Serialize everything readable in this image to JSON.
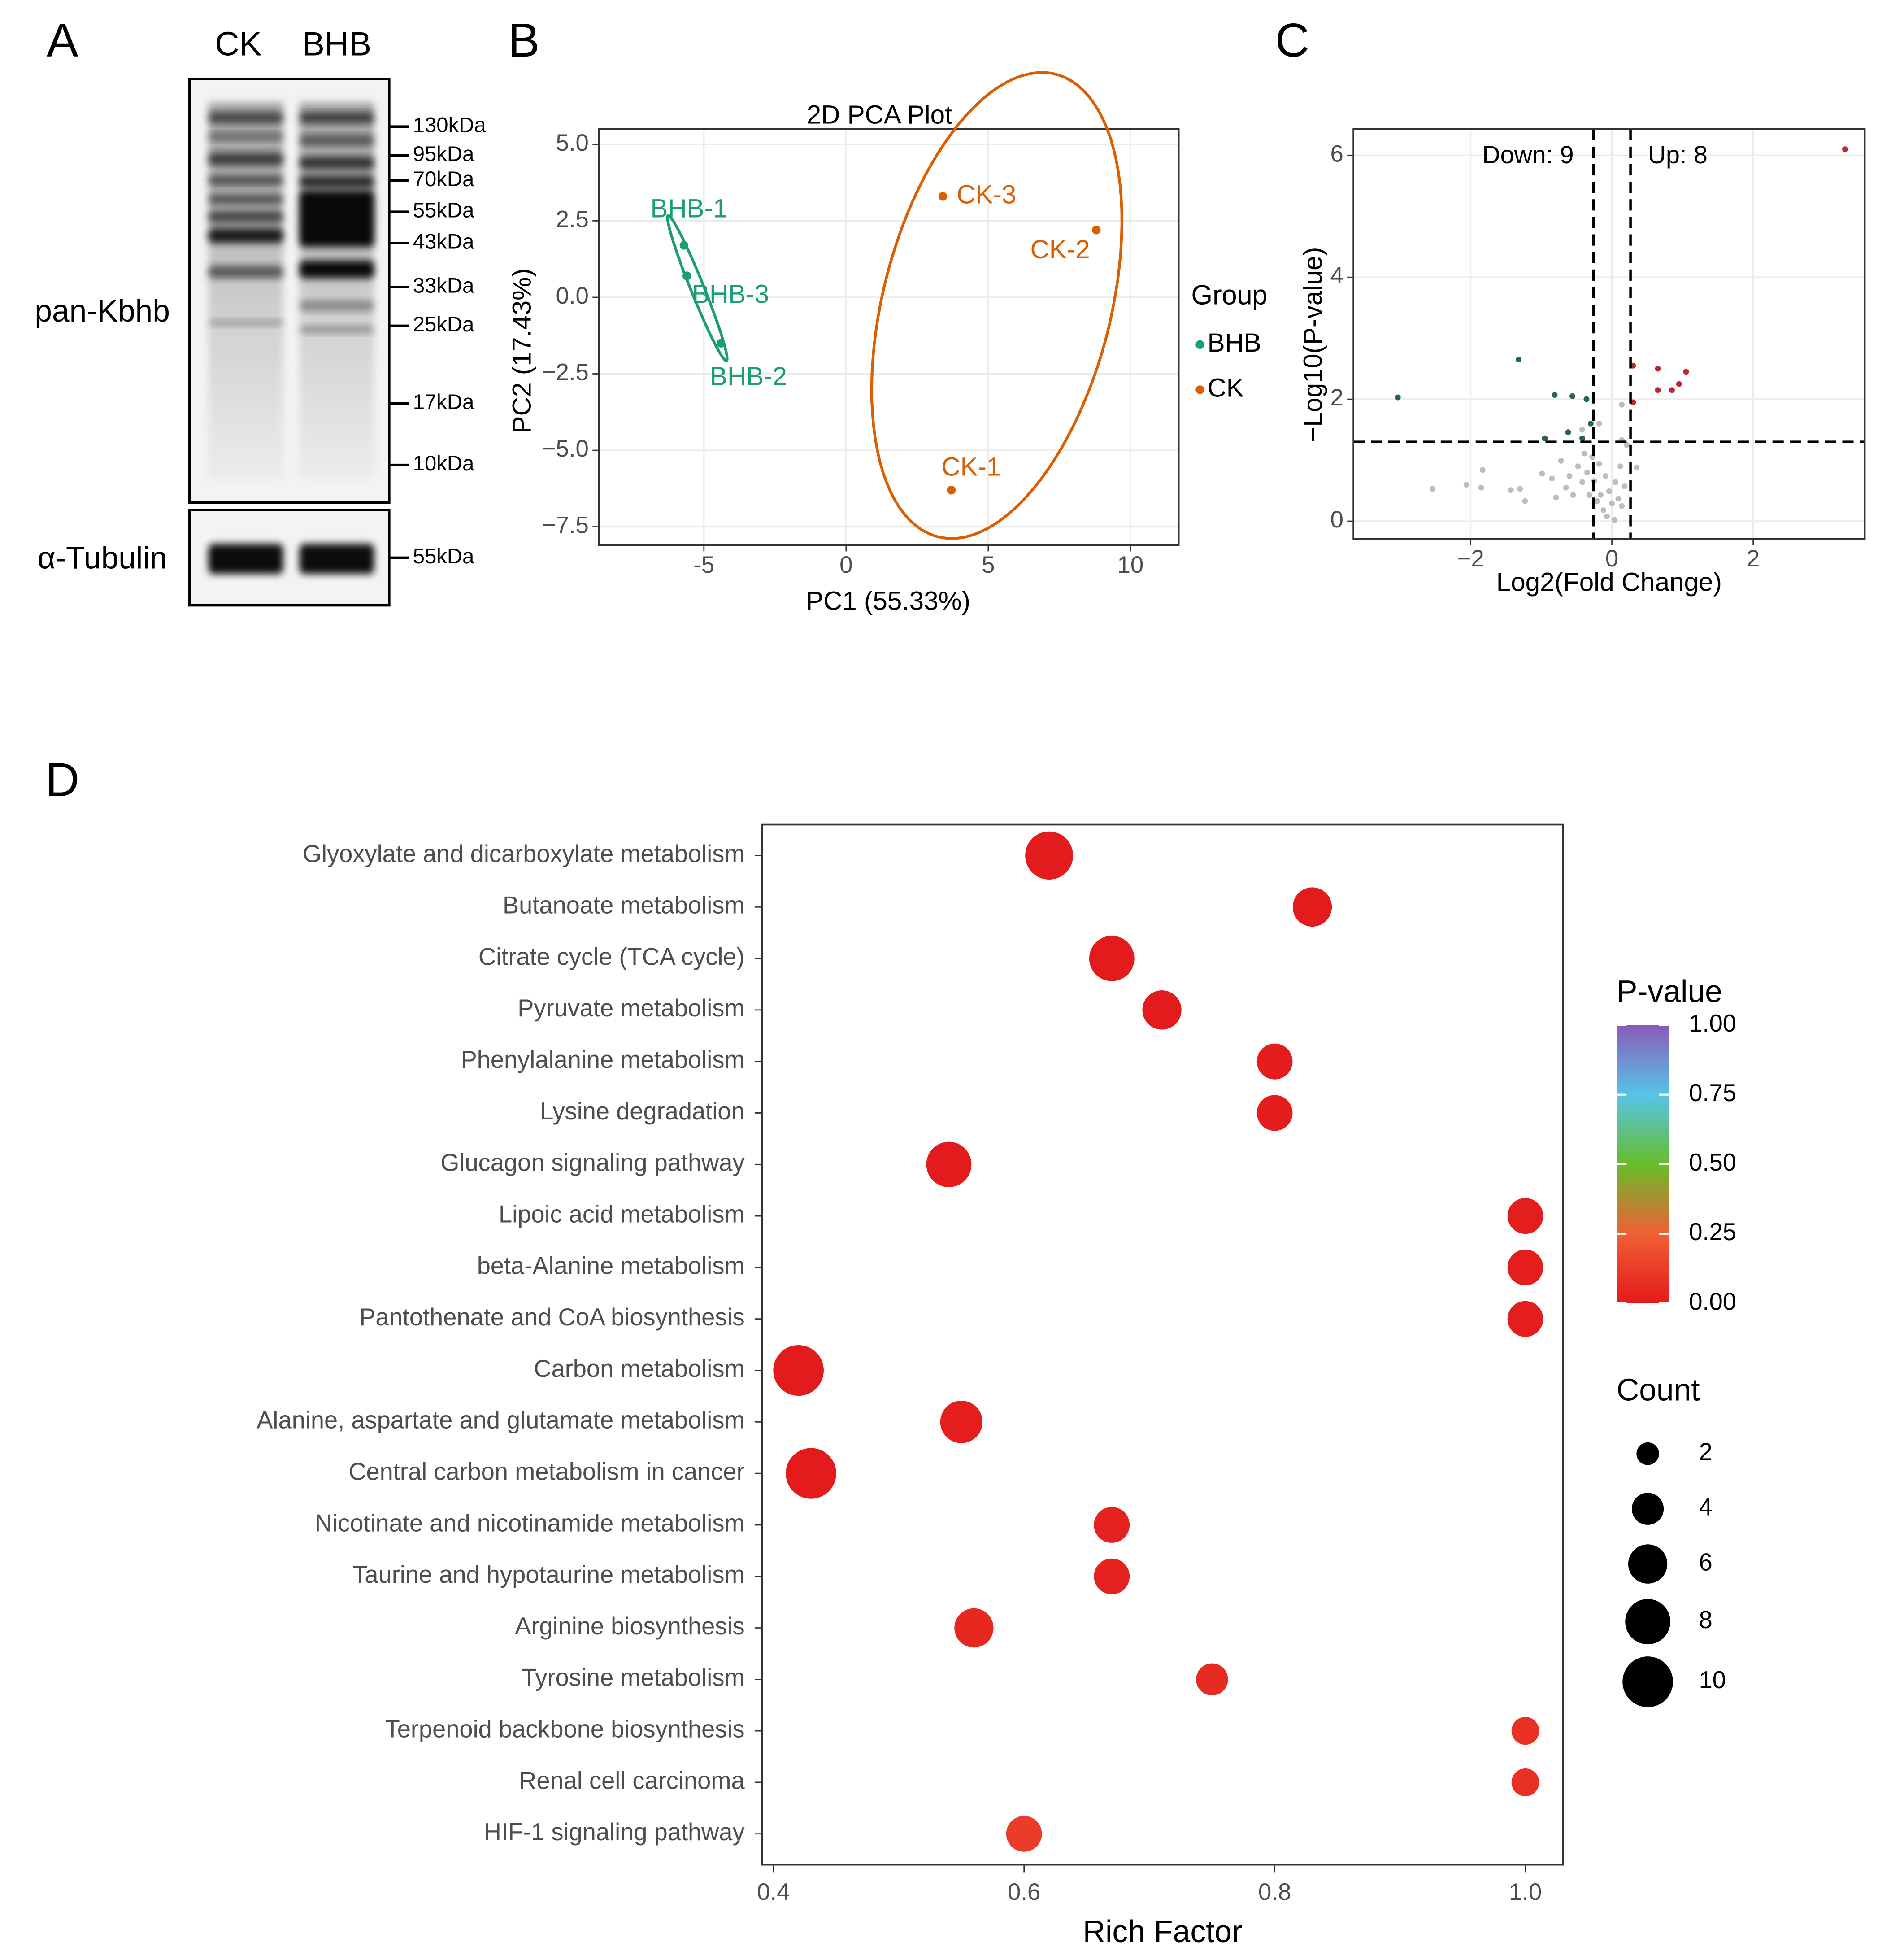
{
  "chart_data": [
    {
      "type": "blot",
      "panel_label": "A",
      "lanes": [
        "CK",
        "BHB"
      ],
      "rows": [
        {
          "label": "pan-Kbhb",
          "markers": [
            "130kDa",
            "95kDa",
            "70kDa",
            "55kDa",
            "43kDa",
            "33kDa",
            "25kDa",
            "17kDa",
            "10kDa"
          ]
        },
        {
          "label": "α-Tubulin",
          "markers": [
            "55kDa"
          ]
        }
      ]
    },
    {
      "type": "pca",
      "panel_label": "B",
      "title": "2D PCA Plot",
      "x_label": "PC1 (55.33%)",
      "y_label": "PC2 (17.43%)",
      "legend_title": "Group",
      "grid": true,
      "series": [
        {
          "name": "BHB",
          "color": "#1b9e77",
          "labels": [
            "BHB-1",
            "BHB-2",
            "BHB-3"
          ],
          "x": [
            -5.7,
            -4.4,
            -5.6
          ],
          "y": [
            1.7,
            -1.5,
            0.7
          ]
        },
        {
          "name": "CK",
          "color": "#d95f02",
          "labels": [
            "CK-1",
            "CK-2",
            "CK-3"
          ],
          "x": [
            3.7,
            8.8,
            3.4
          ],
          "y": [
            -6.3,
            2.2,
            3.3
          ]
        }
      ],
      "xlim": [
        -8.7,
        11.7
      ],
      "ylim": [
        -8.1,
        5.5
      ],
      "xticks": [
        -5,
        0,
        5,
        10
      ],
      "yticks": [
        {
          "value": 5,
          "label": "5.0"
        },
        2.5,
        {
          "value": 0,
          "label": "0.0"
        },
        {
          "value": -2.5,
          "label": "−2.5"
        },
        {
          "value": -5,
          "label": "−5.0"
        },
        {
          "value": -7.5,
          "label": "−7.5"
        }
      ]
    },
    {
      "type": "volcano",
      "panel_label": "C",
      "x_label": "Log2(Fold Change)",
      "y_label": "−Log10(P-value)",
      "annotations": [
        "Down: 9",
        "Up: 8"
      ],
      "grid": true,
      "xlim": [
        -3.66,
        3.58
      ],
      "ylim": [
        -0.29,
        6.43
      ],
      "xticks": [
        {
          "value": -2,
          "label": "−2"
        },
        0,
        2
      ],
      "yticks": [
        0,
        2,
        4,
        6
      ],
      "vlines": [
        -0.263,
        0.263
      ],
      "hline": 1.301,
      "series": [
        {
          "color": "#bdbdbd",
          "x": [
            -2.54,
            -2.06,
            -1.83,
            -1.85,
            -1.43,
            -1.3,
            -1.23,
            -0.99,
            -0.85,
            -0.79,
            -0.72,
            -0.65,
            -0.6,
            -0.55,
            -0.48,
            -0.42,
            -0.39,
            -0.35,
            -0.32,
            -0.28,
            -0.25,
            -0.21,
            -0.18,
            -0.16,
            -0.12,
            -0.09,
            -0.07,
            -0.04,
            0,
            0.04,
            0.05,
            0.09,
            0.12,
            0.14,
            0.18,
            0.21,
            0.14,
            0.14,
            0.35,
            -0.18,
            -0.42
          ],
          "y": [
            0.53,
            0.6,
            0.84,
            0.55,
            0.51,
            0.53,
            0.33,
            0.78,
            0.7,
            0.39,
            0.99,
            0.55,
            0.74,
            0.43,
            0.9,
            0.64,
            1.11,
            0.8,
            0.43,
            1.05,
            0.66,
            0.33,
            0.94,
            0.43,
            0.18,
            0.74,
            0.08,
            0.49,
            0.29,
            0.02,
            0.64,
            0.37,
            0.9,
            0.25,
            0.57,
            1.25,
            1.33,
            1.91,
            0.88,
            1.6,
            1.5
          ]
        },
        {
          "color": "#1e6b46",
          "x": [
            -3.03,
            -1.32,
            -0.81,
            -0.56,
            -0.62,
            -0.95,
            -0.42,
            -0.3,
            -0.36
          ],
          "y": [
            2.03,
            2.65,
            2.07,
            2.05,
            1.46,
            1.36,
            1.36,
            1.6,
            2.0
          ]
        },
        {
          "color": "#c0272d",
          "x": [
            3.3,
            0.3,
            0.65,
            1.05,
            0.95,
            0.85,
            0.65,
            0.3
          ],
          "y": [
            6.1,
            2.55,
            2.5,
            2.45,
            2.25,
            2.15,
            2.15,
            1.95
          ]
        }
      ]
    },
    {
      "type": "bubble",
      "panel_label": "D",
      "x_label": "Rich Factor",
      "categories": [
        "Glyoxylate and dicarboxylate metabolism",
        "Butanoate metabolism",
        "Citrate cycle (TCA cycle)",
        "Pyruvate metabolism",
        "Phenylalanine metabolism",
        "Lysine degradation",
        "Glucagon signaling pathway",
        "Lipoic acid metabolism",
        "beta-Alanine metabolism",
        "Pantothenate and CoA biosynthesis",
        "Carbon metabolism",
        "Alanine, aspartate and glutamate metabolism",
        "Central carbon metabolism in cancer",
        "Nicotinate and nicotinamide metabolism",
        "Taurine and hypotaurine metabolism",
        "Arginine biosynthesis",
        "Tyrosine metabolism",
        "Terpenoid backbone biosynthesis",
        "Renal cell carcinoma",
        "HIF-1 signaling pathway"
      ],
      "values": [
        0.62,
        0.83,
        0.67,
        0.71,
        0.8,
        0.8,
        0.54,
        1,
        1,
        1,
        0.42,
        0.55,
        0.43,
        0.67,
        0.67,
        0.56,
        0.75,
        1,
        1,
        0.6
      ],
      "counts": [
        9,
        6,
        8,
        6,
        5,
        5,
        8,
        5,
        5,
        5,
        10,
        7,
        10,
        5,
        5,
        6,
        4,
        3,
        3,
        5
      ],
      "pvalues": [
        0.002,
        0.004,
        0.003,
        0.005,
        0.008,
        0.008,
        0.004,
        0.01,
        0.01,
        0.01,
        0.003,
        0.012,
        0.005,
        0.03,
        0.03,
        0.05,
        0.06,
        0.08,
        0.08,
        0.12
      ],
      "xlim": [
        0.391,
        1.03
      ],
      "xticks": [
        0.4,
        0.6,
        0.8,
        {
          "value": 1,
          "label": "1.0"
        }
      ],
      "colorbar": {
        "title": "P-value",
        "lim": [
          0,
          1
        ],
        "ticks": [
          {
            "value": 1,
            "label": "1.00"
          },
          0.75,
          {
            "value": 0.5,
            "label": "0.50"
          },
          0.25,
          {
            "value": 0,
            "label": "0.00"
          }
        ],
        "colors": [
          "#e41a1c",
          "#f06035",
          "#66bd2a",
          "#56c4e8",
          "#8a5ab8"
        ]
      },
      "size_legend": {
        "title": "Count",
        "values": [
          2,
          4,
          6,
          8,
          10
        ]
      }
    }
  ]
}
